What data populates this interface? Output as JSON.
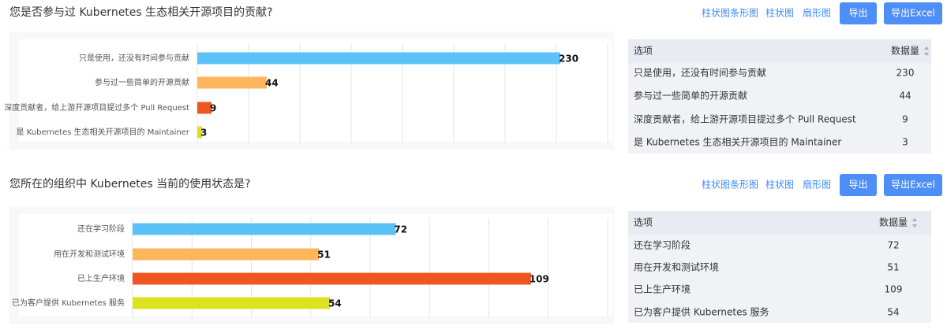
{
  "sections": [
    {
      "title": "您是否参与过 Kubernetes 生态相关开源项目的贡献?",
      "views": [
        "柱状图条形图",
        "柱状图",
        "扇形图"
      ],
      "buttons": [
        "导出",
        "导出Excel"
      ],
      "chart": {
        "type": "bar",
        "orientation": "horizontal",
        "categories": [
          "只是使用，还没有时间参与贡献",
          "参与过一些简单的开源贡献",
          "深度贡献者，给上游开源项目提过多个 Pull Request",
          "是 Kubernetes 生态相关开源项目的 Maintainer"
        ],
        "values": [
          230,
          44,
          9,
          3
        ],
        "colors": [
          "#5bc2f7",
          "#fdb65c",
          "#f0561f",
          "#dbe320"
        ],
        "xlim": [
          0,
          260
        ],
        "grid": true
      },
      "table": {
        "header": [
          "选项",
          "数据量"
        ],
        "rows": [
          [
            "只是使用，还没有时间参与贡献",
            230
          ],
          [
            "参与过一些简单的开源贡献",
            44
          ],
          [
            "深度贡献者，给上游开源项目提过多个 Pull Request",
            9
          ],
          [
            "是 Kubernetes 生态相关开源项目的 Maintainer",
            3
          ]
        ]
      }
    },
    {
      "title": "您所在的组织中 Kubernetes 当前的使用状态是?",
      "views": [
        "柱状图条形图",
        "柱状图",
        "扇形图"
      ],
      "buttons": [
        "导出",
        "导出Excel"
      ],
      "chart": {
        "type": "bar",
        "orientation": "horizontal",
        "categories": [
          "还在学习阶段",
          "用在开发和测试环境",
          "已上生产环境",
          "已为客户提供 Kubernetes 服务"
        ],
        "values": [
          72,
          51,
          109,
          54
        ],
        "colors": [
          "#5bc2f7",
          "#fdb65c",
          "#f0561f",
          "#dbe320"
        ],
        "xlim": [
          0,
          130
        ],
        "grid": true
      },
      "table": {
        "header": [
          "选项",
          "数据量"
        ],
        "rows": [
          [
            "还在学习阶段",
            72
          ],
          [
            "用在开发和测试环境",
            51
          ],
          [
            "已上生产环境",
            109
          ],
          [
            "已为客户提供 Kubernetes 服务",
            54
          ]
        ]
      }
    }
  ]
}
